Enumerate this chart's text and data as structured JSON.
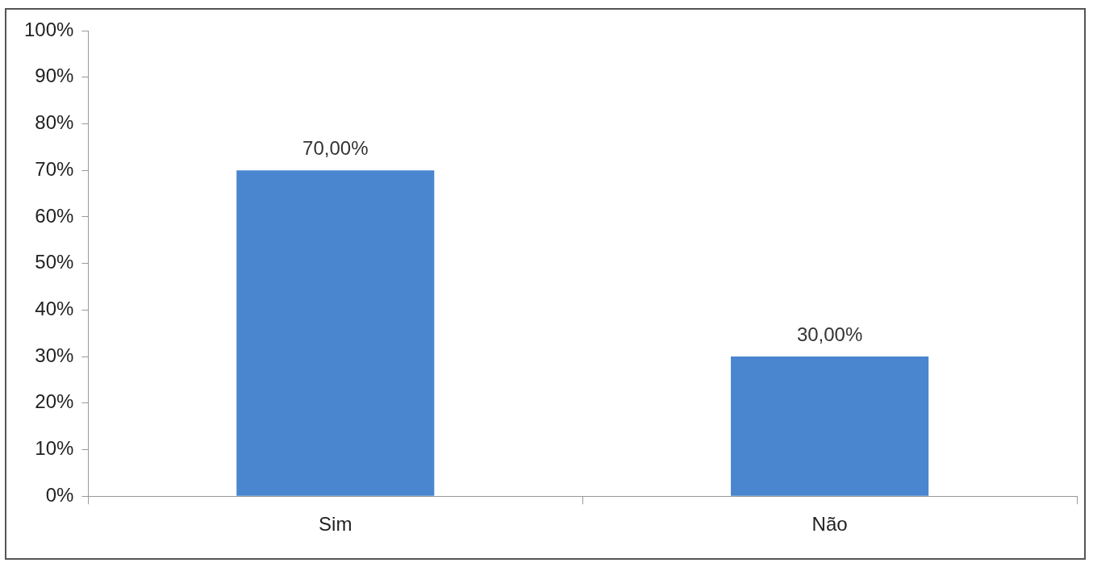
{
  "chart_data": {
    "type": "bar",
    "categories": [
      "Sim",
      "Não"
    ],
    "values": [
      70,
      30
    ],
    "value_labels": [
      "70,00%",
      "30,00%"
    ],
    "color": "#4a86d0",
    "ylim": [
      0,
      100
    ],
    "yticks": [
      {
        "value": 0,
        "label": "0%"
      },
      {
        "value": 10,
        "label": "10%"
      },
      {
        "value": 20,
        "label": "20%"
      },
      {
        "value": 30,
        "label": "30%"
      },
      {
        "value": 40,
        "label": "40%"
      },
      {
        "value": 50,
        "label": "50%"
      },
      {
        "value": 60,
        "label": "60%"
      },
      {
        "value": 70,
        "label": "70%"
      },
      {
        "value": 80,
        "label": "80%"
      },
      {
        "value": 90,
        "label": "90%"
      },
      {
        "value": 100,
        "label": "100%"
      }
    ],
    "grid": false,
    "legend": false
  }
}
